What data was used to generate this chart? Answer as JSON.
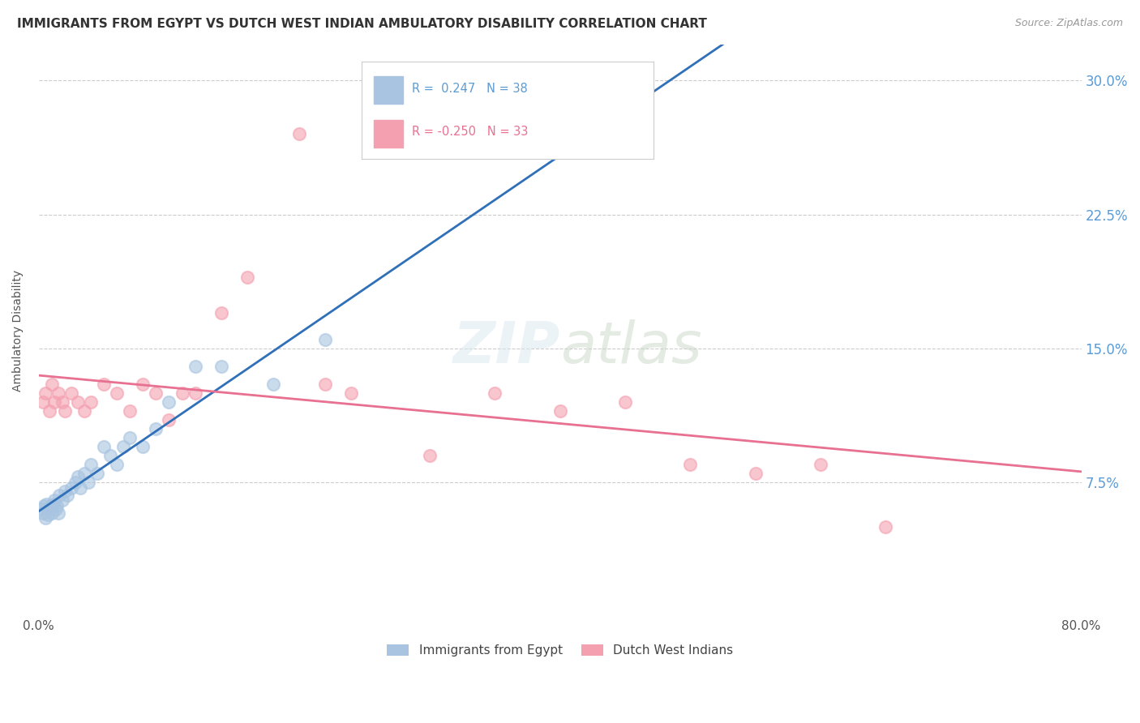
{
  "title": "IMMIGRANTS FROM EGYPT VS DUTCH WEST INDIAN AMBULATORY DISABILITY CORRELATION CHART",
  "source": "Source: ZipAtlas.com",
  "ylabel": "Ambulatory Disability",
  "xlim": [
    0.0,
    0.8
  ],
  "ylim": [
    0.0,
    0.32
  ],
  "xtick_positions": [
    0.0,
    0.2,
    0.4,
    0.6,
    0.8
  ],
  "xticklabels": [
    "0.0%",
    "",
    "",
    "",
    "80.0%"
  ],
  "ytick_positions": [
    0.075,
    0.15,
    0.225,
    0.3
  ],
  "ytick_labels": [
    "7.5%",
    "15.0%",
    "22.5%",
    "30.0%"
  ],
  "legend_r1": "R =  0.247   N = 38",
  "legend_r2": "R = -0.250   N = 33",
  "legend_bottom": [
    "Immigrants from Egypt",
    "Dutch West Indians"
  ],
  "watermark": "ZIPatlas",
  "egypt_scatter_x": [
    0.002,
    0.003,
    0.004,
    0.005,
    0.006,
    0.007,
    0.008,
    0.009,
    0.01,
    0.011,
    0.012,
    0.013,
    0.014,
    0.015,
    0.016,
    0.018,
    0.02,
    0.022,
    0.025,
    0.028,
    0.03,
    0.032,
    0.035,
    0.038,
    0.04,
    0.045,
    0.05,
    0.055,
    0.06,
    0.065,
    0.07,
    0.08,
    0.09,
    0.1,
    0.12,
    0.14,
    0.18,
    0.22
  ],
  "egypt_scatter_y": [
    0.06,
    0.058,
    0.062,
    0.055,
    0.063,
    0.057,
    0.06,
    0.062,
    0.058,
    0.063,
    0.065,
    0.06,
    0.062,
    0.058,
    0.068,
    0.065,
    0.07,
    0.068,
    0.072,
    0.075,
    0.078,
    0.072,
    0.08,
    0.075,
    0.085,
    0.08,
    0.095,
    0.09,
    0.085,
    0.095,
    0.1,
    0.095,
    0.105,
    0.12,
    0.14,
    0.14,
    0.13,
    0.155
  ],
  "dutch_scatter_x": [
    0.003,
    0.005,
    0.008,
    0.01,
    0.012,
    0.015,
    0.018,
    0.02,
    0.025,
    0.03,
    0.035,
    0.04,
    0.05,
    0.06,
    0.07,
    0.08,
    0.09,
    0.1,
    0.11,
    0.12,
    0.14,
    0.16,
    0.2,
    0.22,
    0.24,
    0.3,
    0.35,
    0.4,
    0.45,
    0.5,
    0.55,
    0.6,
    0.65
  ],
  "dutch_scatter_y": [
    0.12,
    0.125,
    0.115,
    0.13,
    0.12,
    0.125,
    0.12,
    0.115,
    0.125,
    0.12,
    0.115,
    0.12,
    0.13,
    0.125,
    0.115,
    0.13,
    0.125,
    0.11,
    0.125,
    0.125,
    0.17,
    0.19,
    0.27,
    0.13,
    0.125,
    0.09,
    0.125,
    0.115,
    0.12,
    0.085,
    0.08,
    0.085,
    0.05
  ],
  "egypt_line_color": "#3070b8",
  "egypt_line_style": "solid",
  "dutch_line_color": "#e87090",
  "dutch_line_style": "solid",
  "egypt_trend_line_color": "#a0bce0",
  "egypt_trend_line_style": "dashed",
  "egypt_scatter_color": "#a8c4e0",
  "dutch_scatter_color": "#f4a0b0",
  "grid_color": "#cccccc",
  "background_color": "#ffffff",
  "title_fontsize": 11,
  "axis_label_fontsize": 10,
  "tick_fontsize": 11,
  "right_tick_color": "#5b9bd5"
}
